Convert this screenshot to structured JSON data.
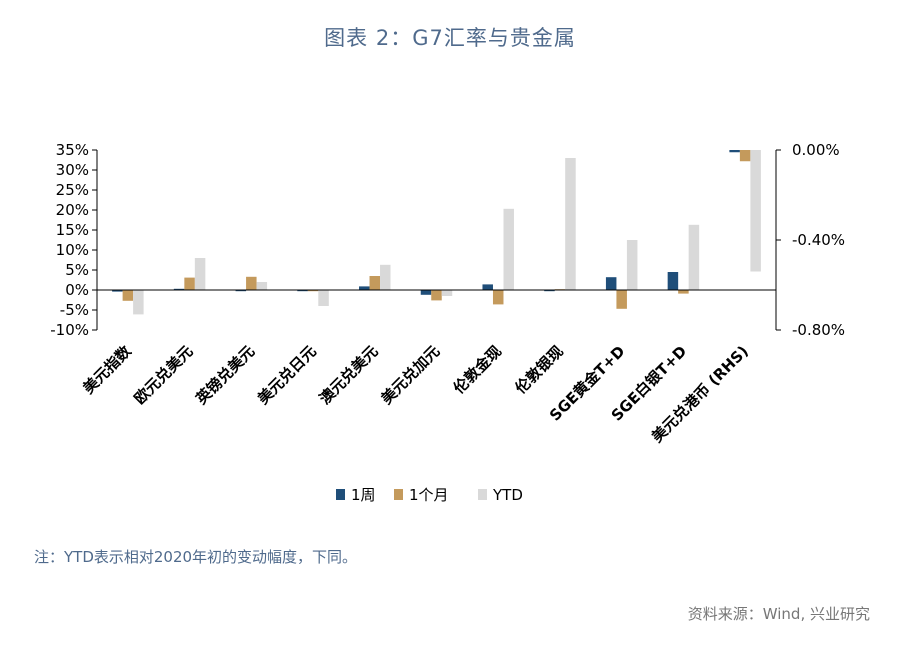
{
  "page": {
    "title": "图表 2：G7汇率与贵金属",
    "note": "注：YTD表示相对2020年初的变动幅度，下同。",
    "source": "资料来源：Wind, 兴业研究"
  },
  "chart_data": {
    "type": "bar",
    "categories": [
      "美元指数",
      "欧元兑美元",
      "英镑兑美元",
      "美元兑日元",
      "澳元兑美元",
      "美元兑加元",
      "伦敦金现",
      "伦敦银现",
      "SGE黄金T+D",
      "SGE白银T+D",
      "美元兑港币(RHS)"
    ],
    "category_labels": [
      "美元指数",
      "欧元兑美元",
      "英镑兑美元",
      "美元兑日元",
      "澳元兑美元",
      "美元兑加元",
      "伦敦金现",
      "伦敦银现",
      "SGE黄金T+D",
      "SGE白银T+D",
      "美元兑港币 (RHS)"
    ],
    "series": [
      {
        "name": "1周",
        "color": "#1f4e79",
        "values": [
          -0.4,
          0.3,
          -0.3,
          -0.3,
          0.9,
          -1.2,
          1.4,
          -0.3,
          3.2,
          4.5,
          -0.01
        ]
      },
      {
        "name": "1个月",
        "color": "#c49a5c",
        "values": [
          -2.7,
          3.1,
          3.3,
          -0.3,
          3.5,
          -2.6,
          -3.6,
          0.2,
          -4.7,
          -0.9,
          -0.05
        ]
      },
      {
        "name": "YTD",
        "color": "#d9d9d9",
        "values": [
          -6.1,
          8.0,
          2.0,
          -4.0,
          6.3,
          -1.5,
          20.3,
          33.0,
          12.5,
          16.3,
          -0.54
        ]
      }
    ],
    "rhs_category": "美元兑港币(RHS)",
    "y_left": {
      "min": -10,
      "max": 35,
      "step": 5,
      "ticks": [
        "35%",
        "30%",
        "25%",
        "20%",
        "15%",
        "10%",
        "5%",
        "0%",
        "-5%",
        "-10%"
      ]
    },
    "y_right": {
      "min": -0.8,
      "max": 0.0,
      "step": 0.4,
      "ticks": [
        "0.00%",
        "-0.40%",
        "-0.80%"
      ]
    },
    "legend": {
      "position": "bottom",
      "items": [
        "1周",
        "1个月",
        "YTD"
      ]
    },
    "grid": false
  }
}
